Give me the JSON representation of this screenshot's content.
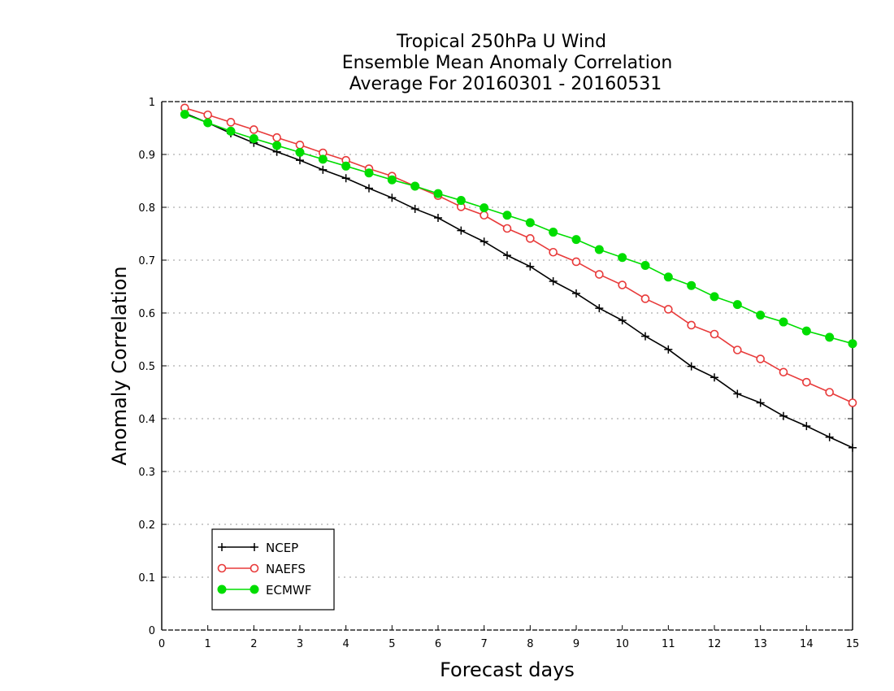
{
  "chart_data": {
    "type": "line",
    "title_lines": [
      "Tropical 250hPa U Wind",
      "Ensemble Mean Anomaly Correlation",
      "Average For 20160301 - 20160531"
    ],
    "xlabel": "Forecast days",
    "ylabel": "Anomaly Correlation",
    "xlim": [
      0,
      15
    ],
    "ylim": [
      0,
      1
    ],
    "x_ticks": [
      "0",
      "1",
      "2",
      "3",
      "4",
      "5",
      "6",
      "7",
      "8",
      "9",
      "10",
      "11",
      "12",
      "13",
      "14",
      "15"
    ],
    "y_ticks": [
      "0",
      "0.1",
      "0.2",
      "0.3",
      "0.4",
      "0.5",
      "0.6",
      "0.7",
      "0.8",
      "0.9",
      "1"
    ],
    "grid": true,
    "legend_position": "bottom-left",
    "x": [
      0.5,
      1,
      1.5,
      2,
      2.5,
      3,
      3.5,
      4,
      4.5,
      5,
      5.5,
      6,
      6.5,
      7,
      7.5,
      8,
      8.5,
      9,
      9.5,
      10,
      10.5,
      11,
      11.5,
      12,
      12.5,
      13,
      13.5,
      14,
      14.5,
      15
    ],
    "series": [
      {
        "name": "NCEP",
        "color": "#000000",
        "marker": "plus",
        "values": [
          0.978,
          0.96,
          0.94,
          0.922,
          0.905,
          0.889,
          0.871,
          0.855,
          0.836,
          0.818,
          0.797,
          0.78,
          0.756,
          0.735,
          0.709,
          0.688,
          0.66,
          0.637,
          0.609,
          0.586,
          0.556,
          0.531,
          0.499,
          0.478,
          0.447,
          0.43,
          0.405,
          0.386,
          0.365,
          0.345
        ]
      },
      {
        "name": "NAEFS",
        "color": "#e83a3a",
        "marker": "open-circle",
        "values": [
          0.988,
          0.975,
          0.961,
          0.947,
          0.932,
          0.918,
          0.903,
          0.889,
          0.873,
          0.859,
          0.84,
          0.822,
          0.801,
          0.785,
          0.76,
          0.741,
          0.715,
          0.697,
          0.673,
          0.653,
          0.627,
          0.607,
          0.577,
          0.56,
          0.53,
          0.513,
          0.488,
          0.469,
          0.45,
          0.43
        ]
      },
      {
        "name": "ECMWF",
        "color": "#00dd00",
        "marker": "filled-circle",
        "values": [
          0.976,
          0.96,
          0.944,
          0.93,
          0.917,
          0.904,
          0.891,
          0.878,
          0.865,
          0.852,
          0.84,
          0.826,
          0.813,
          0.799,
          0.785,
          0.771,
          0.753,
          0.739,
          0.72,
          0.705,
          0.69,
          0.668,
          0.652,
          0.631,
          0.616,
          0.596,
          0.583,
          0.566,
          0.554,
          0.542
        ]
      }
    ]
  }
}
